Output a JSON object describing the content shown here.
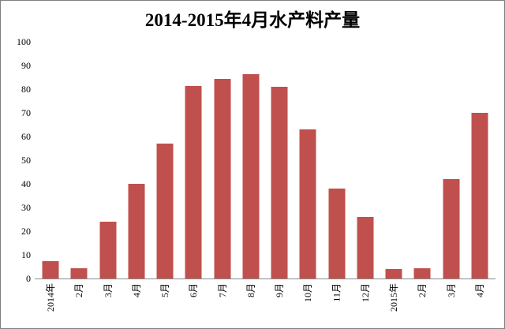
{
  "chart_data": {
    "type": "bar",
    "title": "2014-2015年4月水产料产量",
    "categories": [
      "2014年",
      "2月",
      "3月",
      "4月",
      "5月",
      "6月",
      "7月",
      "8月",
      "9月",
      "10月",
      "11月",
      "12月",
      "2015年",
      "2月",
      "3月",
      "4月"
    ],
    "values": [
      7.5,
      4.5,
      24,
      40,
      57,
      81.5,
      84.5,
      86.5,
      81,
      63,
      38,
      26,
      4,
      4.5,
      42,
      70
    ],
    "xlabel": "",
    "ylabel": "",
    "ylim": [
      0,
      100
    ],
    "ytick_step": 10,
    "ytick_labels": [
      "0",
      "10",
      "20",
      "30",
      "40",
      "50",
      "60",
      "70",
      "80",
      "90",
      "100"
    ],
    "grid": false,
    "legend": false,
    "bar_color": "#C0504D",
    "axis_color": "#898989"
  }
}
